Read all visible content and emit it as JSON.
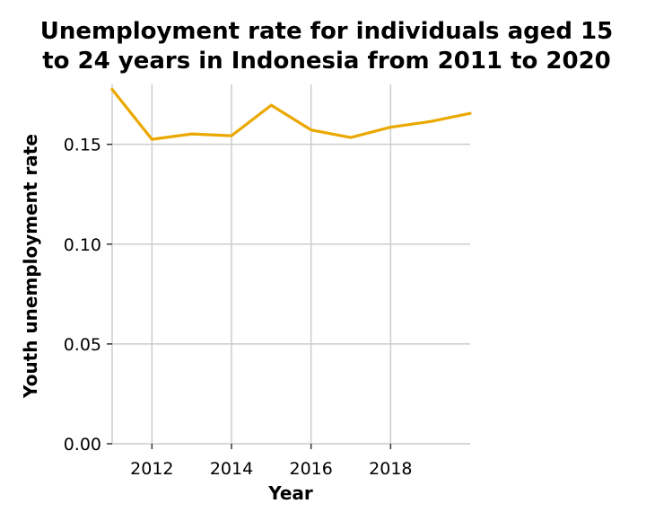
{
  "chart_data": {
    "type": "line",
    "title_lines": [
      "Unemployment rate for individuals aged 15",
      "to 24 years in Indonesia from 2011 to 2020"
    ],
    "xlabel": "Year",
    "ylabel": "Youth unemployment rate",
    "x": [
      2011,
      2012,
      2013,
      2014,
      2015,
      2016,
      2017,
      2018,
      2019,
      2020
    ],
    "series": [
      {
        "values": [
          0.1775,
          0.1525,
          0.1552,
          0.1543,
          0.1696,
          0.1572,
          0.1534,
          0.1586,
          0.1614,
          0.1655
        ],
        "color": "#eaa800"
      }
    ],
    "xlim": [
      2011,
      2020
    ],
    "ylim": [
      0,
      0.18
    ],
    "x_ticks": [
      2012,
      2014,
      2016,
      2018
    ],
    "x_tick_labels": [
      "2012",
      "2014",
      "2016",
      "2018"
    ],
    "y_ticks": [
      0,
      0.05,
      0.1,
      0.15
    ],
    "y_tick_labels": [
      "0.00",
      "0.05",
      "0.10",
      "0.15"
    ],
    "grid": true,
    "grid_color": "#cccccc"
  }
}
